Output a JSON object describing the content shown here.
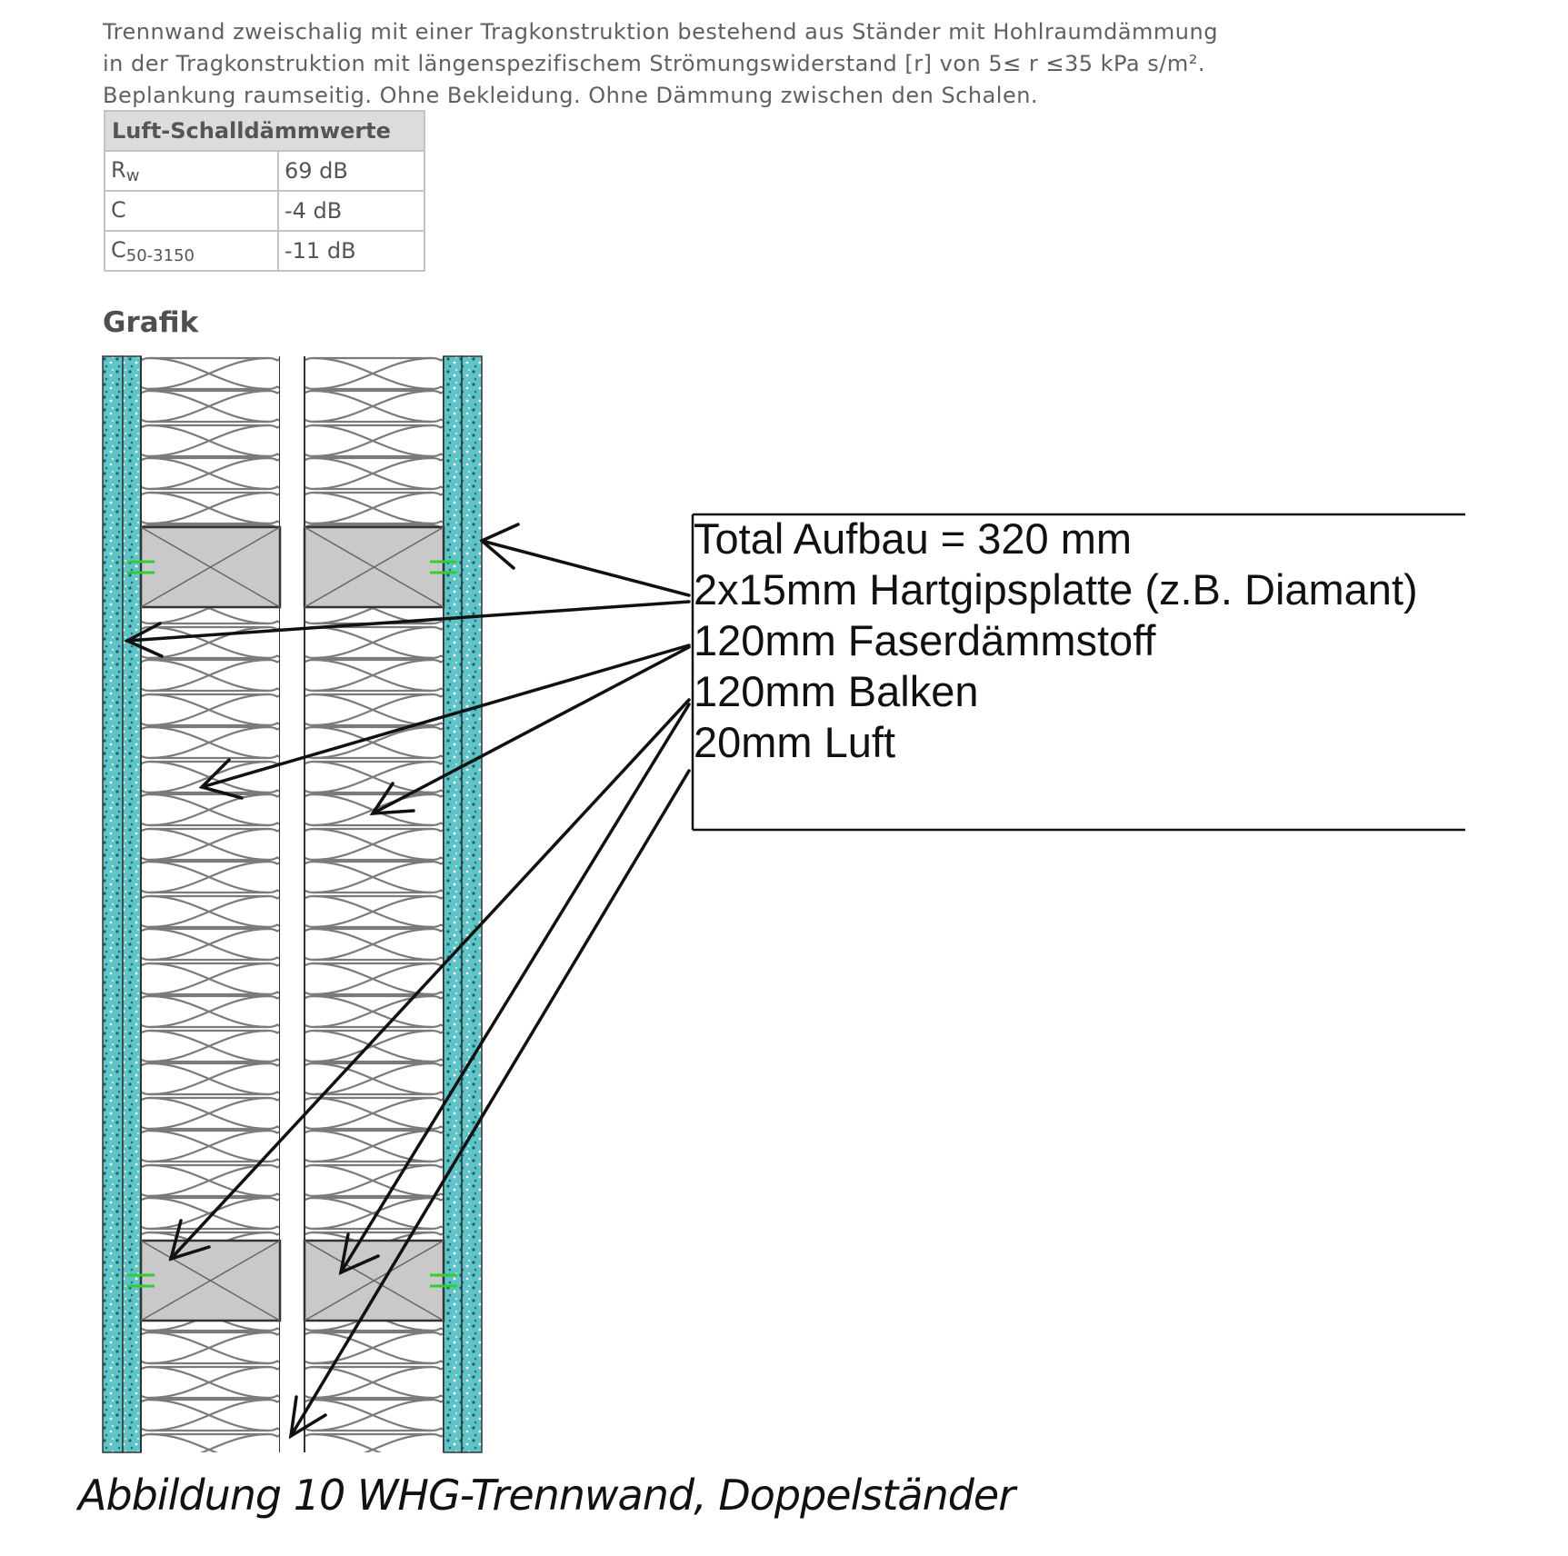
{
  "description": {
    "line1": "Trennwand zweischalig mit einer Tragkonstruktion bestehend aus Ständer mit Hohlraumdämmung",
    "line2": "in der Tragkonstruktion mit längenspezifischem Strömungswiderstand [r] von 5≤ r ≤35 kPa s/m².",
    "line3": "Beplankung raumseitig. Ohne Bekleidung. Ohne Dämmung zwischen den Schalen."
  },
  "sound_table": {
    "header": "Luft-Schalldämmwerte",
    "rows": [
      {
        "symbol": "R",
        "subscript": "w",
        "value": "69 dB"
      },
      {
        "symbol": "C",
        "subscript": "",
        "value": "-4 dB"
      },
      {
        "symbol": "C",
        "subscript": "50-3150",
        "value": "-11 dB"
      }
    ]
  },
  "grafik_heading": "Grafik",
  "callout": {
    "lines": [
      "Total Aufbau = 320 mm",
      "2x15mm Hartgipsplatte (z.B. Diamant)",
      "120mm Faserdämmstoff",
      "120mm Balken",
      "20mm Luft"
    ]
  },
  "colors": {
    "board": "#5fc4c8",
    "beam": "#c9c9c9",
    "insulation": "#ffffff",
    "fastener": "#33cc33"
  },
  "caption": "Abbildung 10 WHG-Trennwand, Doppelständer"
}
